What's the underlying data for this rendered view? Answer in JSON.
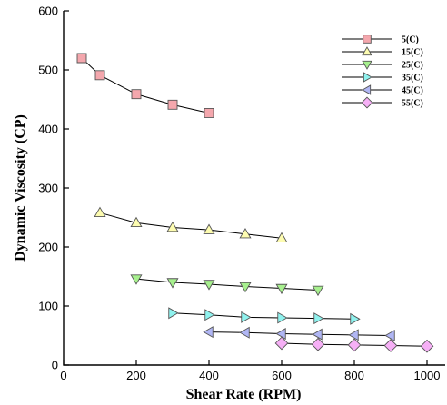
{
  "chart_data": {
    "type": "line",
    "xlabel": "Shear Rate (RPM)",
    "ylabel": "Dynamic Viscosity (CP)",
    "xlim": [
      0,
      1050
    ],
    "ylim": [
      0,
      600
    ],
    "xticks": [
      0,
      200,
      400,
      600,
      800,
      1000
    ],
    "yticks": [
      0,
      100,
      200,
      300,
      400,
      500,
      600
    ],
    "grid": false,
    "legend_position": "top-right",
    "series": [
      {
        "name": "5(C)",
        "marker": "square",
        "color": "#f4a7ad",
        "x": [
          50,
          100,
          200,
          300,
          400
        ],
        "y": [
          520,
          491,
          459,
          441,
          427
        ]
      },
      {
        "name": "15(C)",
        "marker": "triangle-up",
        "color": "#fdfcb0",
        "x": [
          100,
          200,
          300,
          400,
          500,
          600
        ],
        "y": [
          258,
          241,
          233,
          229,
          222,
          215
        ]
      },
      {
        "name": "25(C)",
        "marker": "triangle-down",
        "color": "#a7f08e",
        "x": [
          200,
          300,
          400,
          500,
          600,
          700
        ],
        "y": [
          146,
          140,
          137,
          133,
          130,
          127
        ]
      },
      {
        "name": "35(C)",
        "marker": "triangle-right",
        "color": "#8ff2ee",
        "x": [
          300,
          400,
          500,
          600,
          700,
          800
        ],
        "y": [
          88,
          85,
          81,
          80,
          79,
          78
        ]
      },
      {
        "name": "45(C)",
        "marker": "triangle-left",
        "color": "#b0b6f4",
        "x": [
          400,
          500,
          600,
          700,
          800,
          900
        ],
        "y": [
          56,
          55,
          53,
          52,
          51,
          50
        ]
      },
      {
        "name": "55(C)",
        "marker": "diamond",
        "color": "#f6b0f6",
        "x": [
          600,
          700,
          800,
          900,
          1000
        ],
        "y": [
          37,
          35,
          34,
          33,
          32
        ]
      }
    ]
  }
}
